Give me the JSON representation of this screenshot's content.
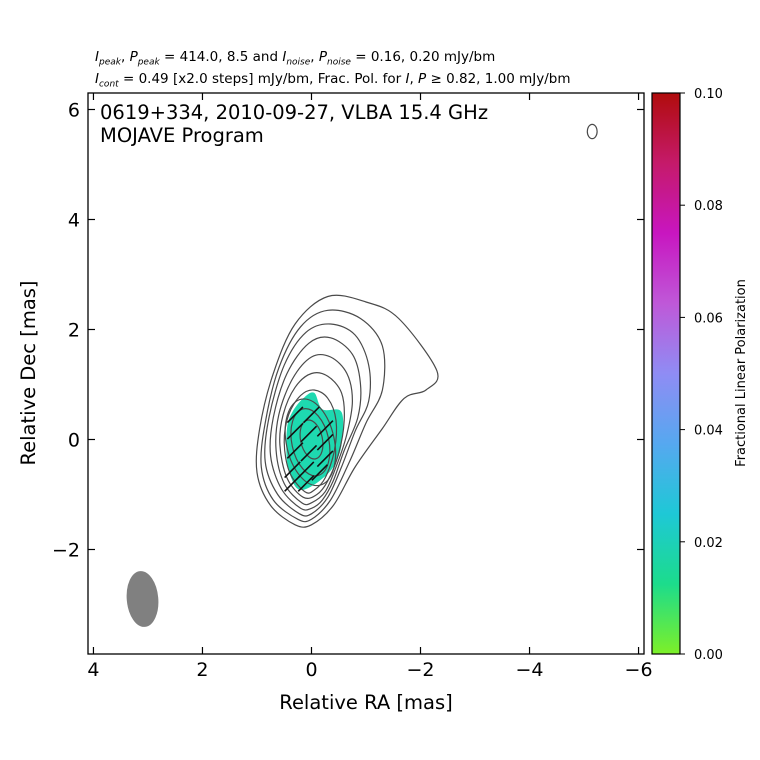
{
  "header": {
    "I_peak": "414.0",
    "P_peak": "8.5",
    "I_noise": "0.16",
    "P_noise": "0.20",
    "unit": "mJy/bm",
    "I_cont": "0.49",
    "steps": "[x2.0 steps]",
    "frac_pol_I": "0.82",
    "frac_pol_P": "1.00"
  },
  "colors": {
    "contour": "#4a4a4a",
    "beam": "#808080",
    "pol_fill": "#1ed9b0",
    "evpa": "#111111",
    "colormap": [
      "#7df028",
      "#1cdc8c",
      "#1ec8d6",
      "#56a8f0",
      "#8f8cf4",
      "#bf58d8",
      "#c816c0",
      "#c51a6a",
      "#b00c0c"
    ]
  },
  "chart_data": {
    "type": "contour",
    "title_line1": "0619+334, 2010-09-27, VLBA 15.4 GHz",
    "title_line2": "MOJAVE Program",
    "xlabel": "Relative RA [mas]",
    "ylabel": "Relative Dec [mas]",
    "xlim": [
      4.1,
      -6.1
    ],
    "ylim": [
      -3.9,
      6.3
    ],
    "xticks": [
      4,
      2,
      0,
      -2,
      -4,
      -6
    ],
    "yticks": [
      -2,
      0,
      2,
      4,
      6
    ],
    "xticklabels": [
      "4",
      "2",
      "0",
      "−2",
      "−4",
      "−6"
    ],
    "yticklabels": [
      "−2",
      "0",
      "2",
      "4",
      "6"
    ],
    "contour_levels_mJy": [
      0.49,
      0.98,
      1.96,
      3.92,
      7.84,
      15.68,
      31.36,
      62.72,
      125.44,
      250.88
    ],
    "contours": [
      {
        "level": 0.49,
        "points": [
          [
            0.3,
            -1.55
          ],
          [
            0.75,
            -1.2
          ],
          [
            1.0,
            -0.6
          ],
          [
            0.95,
            0.2
          ],
          [
            0.7,
            1.2
          ],
          [
            0.3,
            2.1
          ],
          [
            -0.3,
            2.6
          ],
          [
            -1.0,
            2.5
          ],
          [
            -1.6,
            2.2
          ],
          [
            -2.3,
            1.25
          ],
          [
            -2.1,
            0.9
          ],
          [
            -1.7,
            0.75
          ],
          [
            -1.3,
            0.2
          ],
          [
            -0.8,
            -0.5
          ],
          [
            -0.4,
            -1.2
          ],
          [
            0.0,
            -1.55
          ]
        ]
      },
      {
        "level": 0.98,
        "points": [
          [
            0.25,
            -1.45
          ],
          [
            0.7,
            -1.1
          ],
          [
            0.92,
            -0.5
          ],
          [
            0.85,
            0.3
          ],
          [
            0.6,
            1.3
          ],
          [
            0.2,
            2.05
          ],
          [
            -0.3,
            2.35
          ],
          [
            -0.9,
            2.2
          ],
          [
            -1.3,
            1.7
          ],
          [
            -1.3,
            0.9
          ],
          [
            -1.0,
            0.3
          ],
          [
            -0.7,
            -0.4
          ],
          [
            -0.35,
            -1.1
          ],
          [
            0.0,
            -1.45
          ]
        ]
      },
      {
        "level": 1.96,
        "points": [
          [
            0.22,
            -1.35
          ],
          [
            0.62,
            -1.0
          ],
          [
            0.85,
            -0.4
          ],
          [
            0.78,
            0.4
          ],
          [
            0.5,
            1.35
          ],
          [
            0.1,
            1.95
          ],
          [
            -0.35,
            2.1
          ],
          [
            -0.8,
            1.9
          ],
          [
            -1.05,
            1.35
          ],
          [
            -1.05,
            0.7
          ],
          [
            -0.8,
            0.15
          ],
          [
            -0.55,
            -0.5
          ],
          [
            -0.3,
            -1.05
          ],
          [
            0.0,
            -1.35
          ]
        ]
      },
      {
        "level": 3.92,
        "points": [
          [
            0.2,
            -1.25
          ],
          [
            0.55,
            -0.9
          ],
          [
            0.75,
            -0.3
          ],
          [
            0.7,
            0.4
          ],
          [
            0.45,
            1.2
          ],
          [
            0.05,
            1.75
          ],
          [
            -0.35,
            1.85
          ],
          [
            -0.75,
            1.55
          ],
          [
            -0.9,
            1.0
          ],
          [
            -0.85,
            0.4
          ],
          [
            -0.6,
            -0.2
          ],
          [
            -0.4,
            -0.75
          ],
          [
            -0.2,
            -1.1
          ],
          [
            0.0,
            -1.25
          ]
        ]
      },
      {
        "level": 7.84,
        "points": [
          [
            0.18,
            -1.15
          ],
          [
            0.5,
            -0.8
          ],
          [
            0.65,
            -0.2
          ],
          [
            0.6,
            0.45
          ],
          [
            0.35,
            1.1
          ],
          [
            0.0,
            1.5
          ],
          [
            -0.35,
            1.5
          ],
          [
            -0.65,
            1.2
          ],
          [
            -0.75,
            0.7
          ],
          [
            -0.65,
            0.1
          ],
          [
            -0.45,
            -0.5
          ],
          [
            -0.25,
            -0.95
          ],
          [
            0.0,
            -1.15
          ]
        ]
      },
      {
        "level": 15.68,
        "points": [
          [
            0.15,
            -1.05
          ],
          [
            0.45,
            -0.7
          ],
          [
            0.58,
            -0.1
          ],
          [
            0.52,
            0.45
          ],
          [
            0.3,
            0.95
          ],
          [
            0.0,
            1.2
          ],
          [
            -0.3,
            1.15
          ],
          [
            -0.55,
            0.85
          ],
          [
            -0.6,
            0.35
          ],
          [
            -0.5,
            -0.25
          ],
          [
            -0.3,
            -0.75
          ],
          [
            -0.1,
            -1.0
          ]
        ]
      },
      {
        "level": 31.36,
        "points": [
          [
            0.12,
            -0.95
          ],
          [
            0.4,
            -0.6
          ],
          [
            0.5,
            -0.05
          ],
          [
            0.42,
            0.45
          ],
          [
            0.2,
            0.8
          ],
          [
            -0.05,
            0.9
          ],
          [
            -0.3,
            0.75
          ],
          [
            -0.45,
            0.35
          ],
          [
            -0.42,
            -0.2
          ],
          [
            -0.25,
            -0.7
          ],
          [
            -0.05,
            -0.92
          ]
        ]
      }
    ],
    "contour_ellipses": [
      {
        "level": 62.72,
        "center": [
          0.02,
          -0.05
        ],
        "semi_axes": [
          0.44,
          0.8
        ],
        "angle_deg": -12
      },
      {
        "level": 125.44,
        "center": [
          0.02,
          -0.05
        ],
        "semi_axes": [
          0.34,
          0.62
        ],
        "angle_deg": -12
      },
      {
        "level": 250.88,
        "center": [
          0.0,
          0.0
        ],
        "semi_axes": [
          0.2,
          0.36
        ],
        "angle_deg": -12
      }
    ],
    "isolated_contour": {
      "center": [
        -5.15,
        5.6
      ],
      "semi_axes": [
        0.09,
        0.13
      ]
    },
    "beam": {
      "center": [
        3.1,
        -2.9
      ],
      "semi_axes": [
        0.28,
        0.5
      ],
      "angle_deg": -5
    },
    "polarization_region": {
      "fractional_polarization": 0.02,
      "points": [
        [
          0.35,
          -0.75
        ],
        [
          0.45,
          -0.4
        ],
        [
          0.45,
          0.2
        ],
        [
          0.35,
          0.5
        ],
        [
          0.15,
          0.75
        ],
        [
          -0.05,
          0.85
        ],
        [
          -0.2,
          0.55
        ],
        [
          -0.55,
          0.5
        ],
        [
          -0.55,
          -0.1
        ],
        [
          -0.4,
          -0.5
        ],
        [
          -0.15,
          -0.75
        ],
        [
          0.1,
          -0.9
        ],
        [
          0.25,
          -0.9
        ]
      ]
    },
    "evpa_vectors": [
      {
        "x": 0.3,
        "y": 0.45
      },
      {
        "x": 0.0,
        "y": 0.45
      },
      {
        "x": -0.25,
        "y": 0.2
      },
      {
        "x": 0.3,
        "y": 0.15
      },
      {
        "x": 0.05,
        "y": 0.1
      },
      {
        "x": -0.25,
        "y": -0.05
      },
      {
        "x": 0.3,
        "y": -0.2
      },
      {
        "x": 0.05,
        "y": -0.25
      },
      {
        "x": -0.25,
        "y": -0.35
      },
      {
        "x": 0.35,
        "y": -0.55
      },
      {
        "x": 0.1,
        "y": -0.55
      },
      {
        "x": -0.15,
        "y": -0.6
      },
      {
        "x": 0.35,
        "y": -0.8
      },
      {
        "x": 0.1,
        "y": -0.8
      }
    ],
    "evpa_angle_deg": 45,
    "colorbar": {
      "label": "Fractional Linear Polarization",
      "min": 0.0,
      "max": 0.1,
      "ticks": [
        0.0,
        0.02,
        0.04,
        0.06,
        0.08,
        0.1
      ],
      "ticklabels": [
        "0.00",
        "0.02",
        "0.04",
        "0.06",
        "0.08",
        "0.10"
      ]
    }
  }
}
